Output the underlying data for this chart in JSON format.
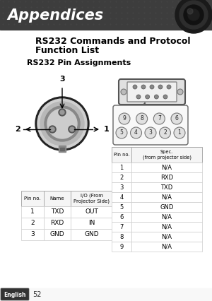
{
  "title_header": "Appendices",
  "section_title_line1": "RS232 Commands and Protocol",
  "section_title_line2": "Function List",
  "subsection_title": "RS232 Pin Assignments",
  "bg_color": "#ffffff",
  "header_bg_color": "#3d3d3d",
  "header_text_color": "#ffffff",
  "footer_text": "English",
  "footer_page": "52",
  "left_table_headers": [
    "Pin no.",
    "Name",
    "I/O (From\nProjector Side)"
  ],
  "left_table_rows": [
    [
      "1",
      "TXD",
      "OUT"
    ],
    [
      "2",
      "RXD",
      "IN"
    ],
    [
      "3",
      "GND",
      "GND"
    ]
  ],
  "right_table_header_col1": "Pin no.",
  "right_table_header_col2": "Spec.\n(from projector side)",
  "right_table_rows": [
    [
      "1",
      "N/A"
    ],
    [
      "2",
      "RXD"
    ],
    [
      "3",
      "TXD"
    ],
    [
      "4",
      "N/A"
    ],
    [
      "5",
      "GND"
    ],
    [
      "6",
      "N/A"
    ],
    [
      "7",
      "N/A"
    ],
    [
      "8",
      "N/A"
    ],
    [
      "9",
      "N/A"
    ]
  ]
}
